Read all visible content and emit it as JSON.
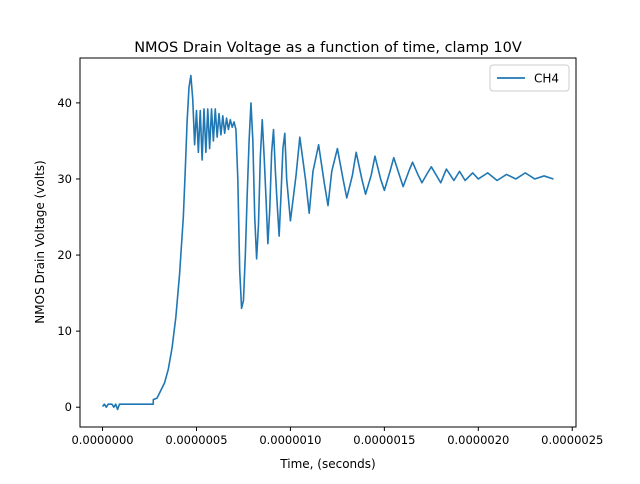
{
  "chart_data": {
    "type": "line",
    "title": "NMOS Drain Voltage as a function of time, clamp 10V",
    "xlabel": "Time, (seconds)",
    "ylabel": "NMOS Drain Voltage (volts)",
    "xlim": [
      -1.2e-07,
      2.52e-06
    ],
    "ylim": [
      -2.6,
      45.9
    ],
    "x_ticks": [
      {
        "value": 0,
        "label": "0.0000000"
      },
      {
        "value": 5e-07,
        "label": "0.0000005"
      },
      {
        "value": 1e-06,
        "label": "0.0000010"
      },
      {
        "value": 1.5e-06,
        "label": "0.0000015"
      },
      {
        "value": 2e-06,
        "label": "0.0000020"
      },
      {
        "value": 2.5e-06,
        "label": "0.0000025"
      }
    ],
    "y_ticks": [
      {
        "value": 0,
        "label": "0"
      },
      {
        "value": 10,
        "label": "10"
      },
      {
        "value": 20,
        "label": "20"
      },
      {
        "value": 30,
        "label": "30"
      },
      {
        "value": 40,
        "label": "40"
      }
    ],
    "grid": false,
    "legend_position": "top-right",
    "series": [
      {
        "name": "CH4",
        "color": "#1f77b4",
        "points": [
          [
            0,
            0.1
          ],
          [
            1e-08,
            0.4
          ],
          [
            2e-08,
            0
          ],
          [
            3e-08,
            0.4
          ],
          [
            5e-08,
            0.4
          ],
          [
            6e-08,
            0
          ],
          [
            7e-08,
            0.4
          ],
          [
            8e-08,
            -0.3
          ],
          [
            9e-08,
            0.4
          ],
          [
            1.2e-07,
            0.4
          ],
          [
            2e-07,
            0.4
          ],
          [
            2.7e-07,
            0.4
          ],
          [
            2.7e-07,
            1.0
          ],
          [
            2.9e-07,
            1.2
          ],
          [
            3.1e-07,
            2.2
          ],
          [
            3.3e-07,
            3.2
          ],
          [
            3.5e-07,
            5.0
          ],
          [
            3.7e-07,
            7.8
          ],
          [
            3.9e-07,
            11.8
          ],
          [
            4.1e-07,
            17.5
          ],
          [
            4.3e-07,
            25.0
          ],
          [
            4.4e-07,
            31.0
          ],
          [
            4.5e-07,
            37.5
          ],
          [
            4.6e-07,
            42.0
          ],
          [
            4.7e-07,
            43.6
          ],
          [
            4.8e-07,
            40.5
          ],
          [
            4.9e-07,
            34.5
          ],
          [
            5e-07,
            39.0
          ],
          [
            5.1e-07,
            33.5
          ],
          [
            5.2e-07,
            39.0
          ],
          [
            5.3e-07,
            32.5
          ],
          [
            5.4e-07,
            39.2
          ],
          [
            5.5e-07,
            33.5
          ],
          [
            5.6e-07,
            39.2
          ],
          [
            5.7e-07,
            34.0
          ],
          [
            5.8e-07,
            39.2
          ],
          [
            5.9e-07,
            35.0
          ],
          [
            6e-07,
            39.2
          ],
          [
            6.1e-07,
            35.5
          ],
          [
            6.2e-07,
            38.6
          ],
          [
            6.3e-07,
            35.8
          ],
          [
            6.4e-07,
            38.3
          ],
          [
            6.5e-07,
            36.0
          ],
          [
            6.6e-07,
            38.0
          ],
          [
            6.7e-07,
            36.5
          ],
          [
            6.8e-07,
            37.8
          ],
          [
            6.9e-07,
            36.8
          ],
          [
            7e-07,
            37.5
          ],
          [
            7.1e-07,
            36.5
          ],
          [
            7.2e-07,
            30.0
          ],
          [
            7.3e-07,
            18.0
          ],
          [
            7.4e-07,
            13.0
          ],
          [
            7.5e-07,
            14.0
          ],
          [
            7.6e-07,
            20.0
          ],
          [
            7.7e-07,
            28.0
          ],
          [
            7.8e-07,
            35.0
          ],
          [
            7.9e-07,
            40.0
          ],
          [
            8e-07,
            35.0
          ],
          [
            8.1e-07,
            25.0
          ],
          [
            8.2e-07,
            19.5
          ],
          [
            8.3e-07,
            24.0
          ],
          [
            8.4e-07,
            33.0
          ],
          [
            8.5e-07,
            37.8
          ],
          [
            8.6e-07,
            33.0
          ],
          [
            8.7e-07,
            27.5
          ],
          [
            8.8e-07,
            21.5
          ],
          [
            8.9e-07,
            26.0
          ],
          [
            9e-07,
            33.5
          ],
          [
            9.1e-07,
            36.5
          ],
          [
            9.2e-07,
            31.0
          ],
          [
            9.3e-07,
            26.5
          ],
          [
            9.4e-07,
            22.5
          ],
          [
            9.5e-07,
            28.0
          ],
          [
            9.6e-07,
            34.0
          ],
          [
            9.7e-07,
            36.0
          ],
          [
            9.8e-07,
            30.0
          ],
          [
            1e-06,
            24.5
          ],
          [
            1.03e-06,
            30.5
          ],
          [
            1.05e-06,
            35.5
          ],
          [
            1.08e-06,
            30.0
          ],
          [
            1.1e-06,
            25.5
          ],
          [
            1.12e-06,
            31.0
          ],
          [
            1.15e-06,
            34.5
          ],
          [
            1.18e-06,
            29.5
          ],
          [
            1.2e-06,
            26.5
          ],
          [
            1.22e-06,
            31.0
          ],
          [
            1.25e-06,
            34.0
          ],
          [
            1.28e-06,
            30.0
          ],
          [
            1.3e-06,
            27.5
          ],
          [
            1.33e-06,
            30.5
          ],
          [
            1.35e-06,
            33.5
          ],
          [
            1.38e-06,
            30.0
          ],
          [
            1.4e-06,
            28.0
          ],
          [
            1.43e-06,
            30.5
          ],
          [
            1.45e-06,
            33.0
          ],
          [
            1.48e-06,
            30.0
          ],
          [
            1.5e-06,
            28.5
          ],
          [
            1.53e-06,
            31.0
          ],
          [
            1.55e-06,
            32.8
          ],
          [
            1.58e-06,
            30.5
          ],
          [
            1.6e-06,
            29.0
          ],
          [
            1.63e-06,
            31.0
          ],
          [
            1.65e-06,
            32.2
          ],
          [
            1.68e-06,
            30.5
          ],
          [
            1.7e-06,
            29.5
          ],
          [
            1.73e-06,
            30.8
          ],
          [
            1.75e-06,
            31.6
          ],
          [
            1.8e-06,
            29.5
          ],
          [
            1.83e-06,
            31.3
          ],
          [
            1.87e-06,
            29.8
          ],
          [
            1.9e-06,
            31.0
          ],
          [
            1.93e-06,
            29.8
          ],
          [
            1.97e-06,
            30.8
          ],
          [
            2e-06,
            30.0
          ],
          [
            2.05e-06,
            30.8
          ],
          [
            2.1e-06,
            29.8
          ],
          [
            2.15e-06,
            30.6
          ],
          [
            2.2e-06,
            30.0
          ],
          [
            2.25e-06,
            30.8
          ],
          [
            2.3e-06,
            30.0
          ],
          [
            2.35e-06,
            30.4
          ],
          [
            2.4e-06,
            30.0
          ]
        ]
      }
    ]
  }
}
